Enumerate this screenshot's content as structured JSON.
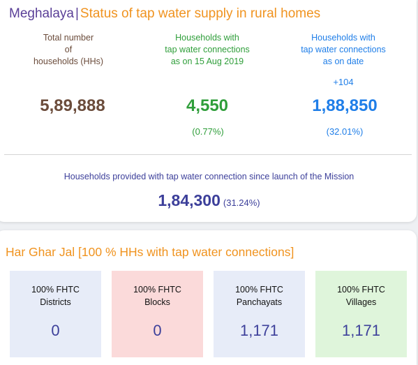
{
  "header": {
    "state": "Meghalaya",
    "separator": "|",
    "subject": "Status of tap water supply in rural homes"
  },
  "stats": {
    "total": {
      "label_lines": [
        "Total number",
        "of",
        "households (HHs)"
      ],
      "value": "5,89,888"
    },
    "aug2019": {
      "label_lines": [
        "Households with",
        "tap water connections",
        "as on 15 Aug 2019"
      ],
      "value": "4,550",
      "percent": "(0.77%)"
    },
    "on_date": {
      "label_lines": [
        "Households with",
        "tap water connections",
        "as on date"
      ],
      "increment": "+104",
      "value": "1,88,850",
      "percent": "(32.01%)"
    }
  },
  "mission": {
    "label": "Households provided with tap water connection since launch of the Mission",
    "value": "1,84,300",
    "percent": "(31.24%)"
  },
  "har_ghar_jal": {
    "title": "Har Ghar Jal [100 % HHs with tap water connections]",
    "tiles": [
      {
        "label_lines": [
          "100% FHTC",
          "Districts"
        ],
        "value": "0"
      },
      {
        "label_lines": [
          "100% FHTC",
          "Blocks"
        ],
        "value": "0"
      },
      {
        "label_lines": [
          "100% FHTC",
          "Panchayats"
        ],
        "value": "1,171"
      },
      {
        "label_lines": [
          "100% FHTC",
          "Villages"
        ],
        "value": "1,171"
      }
    ]
  },
  "colors": {
    "state": "#5a3f97",
    "accent_orange": "#f0931f",
    "brown": "#6b4c3b",
    "green": "#2f9e3a",
    "blue": "#1f7ee8",
    "indigo": "#3c3f9a",
    "tile_blue": "#e7ecf8",
    "tile_pink": "#fbdada",
    "tile_green": "#dff5db"
  }
}
